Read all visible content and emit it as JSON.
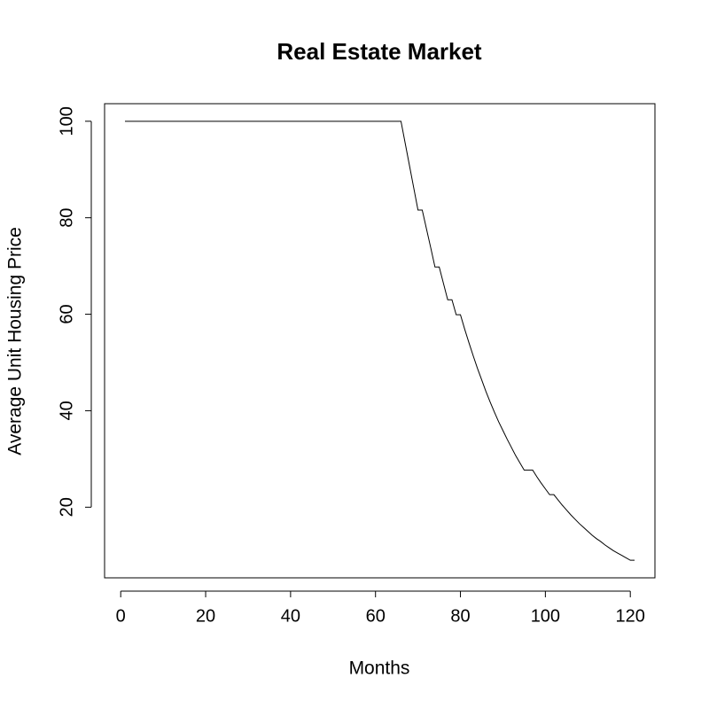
{
  "chart_data": {
    "type": "line",
    "title": "Real Estate Market",
    "x_label": "Months",
    "y_label": "Average Unit Housing Price",
    "x": [
      1,
      2,
      3,
      4,
      5,
      6,
      7,
      8,
      9,
      10,
      11,
      12,
      13,
      14,
      15,
      16,
      17,
      18,
      19,
      20,
      21,
      22,
      23,
      24,
      25,
      26,
      27,
      28,
      29,
      30,
      31,
      32,
      33,
      34,
      35,
      36,
      37,
      38,
      39,
      40,
      41,
      42,
      43,
      44,
      45,
      46,
      47,
      48,
      49,
      50,
      51,
      52,
      53,
      54,
      55,
      56,
      57,
      58,
      59,
      60,
      61,
      62,
      63,
      64,
      65,
      66,
      67,
      68,
      69,
      70,
      71,
      72,
      73,
      74,
      75,
      76,
      77,
      78,
      79,
      80,
      81,
      82,
      83,
      84,
      85,
      86,
      87,
      88,
      89,
      90,
      91,
      92,
      93,
      94,
      95,
      96,
      97,
      98,
      99,
      100,
      101,
      102,
      103,
      104,
      105,
      106,
      107,
      108,
      109,
      110,
      111,
      112,
      113,
      114,
      115,
      116,
      117,
      118,
      119,
      120,
      121
    ],
    "series": [
      {
        "color": "#000000",
        "values": [
          100,
          100,
          100,
          100,
          100,
          100,
          100,
          100,
          100,
          100,
          100,
          100,
          100,
          100,
          100,
          100,
          100,
          100,
          100,
          100,
          100,
          100,
          100,
          100,
          100,
          100,
          100,
          100,
          100,
          100,
          100,
          100,
          100,
          100,
          100,
          100,
          100,
          100,
          100,
          100,
          100,
          100,
          100,
          100,
          100,
          100,
          100,
          100,
          100,
          100,
          100,
          100,
          100,
          100,
          100,
          100,
          100,
          100,
          100,
          100,
          100,
          100,
          100,
          100,
          100,
          100,
          95.4,
          90.8,
          86.2,
          81.6,
          81.6,
          77.7,
          73.8,
          69.8,
          69.8,
          66.4,
          63.0,
          63.0,
          59.9,
          59.9,
          56.9,
          54.1,
          51.4,
          48.8,
          46.4,
          44.0,
          41.8,
          39.7,
          37.7,
          35.9,
          34.1,
          32.4,
          30.7,
          29.2,
          27.7,
          27.7,
          27.7,
          26.3,
          25.0,
          23.8,
          22.6,
          22.6,
          21.5,
          20.4,
          19.4,
          18.4,
          17.5,
          16.6,
          15.8,
          15.0,
          14.2,
          13.5,
          12.9,
          12.2,
          11.6,
          11.0,
          10.5,
          10.0,
          9.5,
          9.0,
          9.0
        ]
      }
    ],
    "xlim": [
      -3.8,
      125.8
    ],
    "ylim": [
      5.36,
      103.64
    ],
    "xticks": [
      0,
      20,
      40,
      60,
      80,
      100,
      120
    ],
    "yticks": [
      20,
      40,
      60,
      80,
      100
    ]
  }
}
